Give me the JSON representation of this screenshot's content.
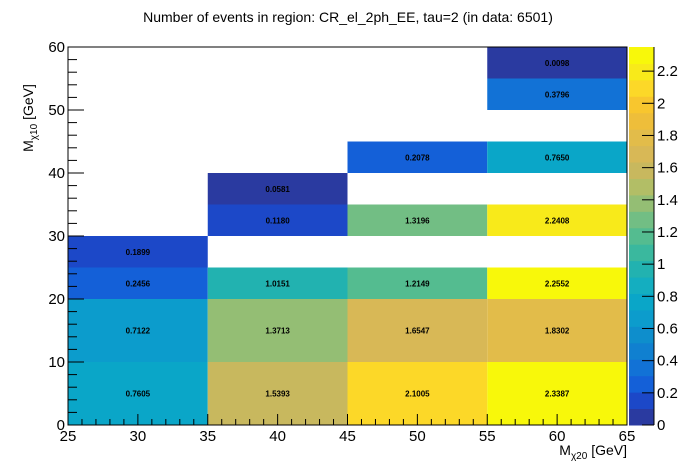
{
  "chart_data": {
    "type": "heatmap",
    "title": "Number of events in region: CR_el_2ph_EE, tau=2 (in data: 6501)",
    "xlabel": {
      "main": "M",
      "sub": "χ20",
      "unit": " [GeV]"
    },
    "ylabel": {
      "main": "M",
      "sub": "χ10",
      "unit": " [GeV]"
    },
    "xlim": [
      25,
      65
    ],
    "ylim": [
      0,
      60
    ],
    "x_ticks": [
      25,
      30,
      35,
      40,
      45,
      50,
      55,
      60,
      65
    ],
    "x_tick_labels": [
      "25",
      "30",
      "35",
      "40",
      "45",
      "50",
      "55",
      "60",
      "65"
    ],
    "y_ticks": [
      0,
      10,
      20,
      30,
      40,
      50,
      60
    ],
    "y_tick_labels": [
      "0",
      "10",
      "20",
      "30",
      "40",
      "50",
      "60"
    ],
    "zlim": [
      0,
      2.35
    ],
    "z_ticks": [
      0,
      0.2,
      0.4,
      0.6,
      0.8,
      1,
      1.2,
      1.4,
      1.6,
      1.8,
      2,
      2.2
    ],
    "z_tick_labels": [
      "0",
      "0.2",
      "0.4",
      "0.6",
      "0.8",
      "1",
      "1.2",
      "1.4",
      "1.6",
      "1.8",
      "2",
      "2.2"
    ],
    "palette": [
      "#2a3aa0",
      "#1c48c8",
      "#1460d8",
      "#1272d6",
      "#1080d0",
      "#0e8ecc",
      "#0c9ccc",
      "#0aa6c8",
      "#14aec0",
      "#22b2b0",
      "#3ab89e",
      "#54bc90",
      "#72be84",
      "#94be74",
      "#b2be66",
      "#c8b85e",
      "#d8b856",
      "#e2bc4a",
      "#eebe3a",
      "#f8c62e",
      "#fcd828",
      "#f8ea1a",
      "#f8f80a"
    ],
    "cells": [
      {
        "x0": 25,
        "x1": 35,
        "y0": 0,
        "y1": 10,
        "value": 0.7605,
        "label": "0.7605"
      },
      {
        "x0": 25,
        "x1": 35,
        "y0": 10,
        "y1": 20,
        "value": 0.7122,
        "label": "0.7122"
      },
      {
        "x0": 25,
        "x1": 35,
        "y0": 20,
        "y1": 25,
        "value": 0.2456,
        "label": "0.2456"
      },
      {
        "x0": 25,
        "x1": 35,
        "y0": 25,
        "y1": 30,
        "value": 0.1899,
        "label": "0.1899"
      },
      {
        "x0": 35,
        "x1": 45,
        "y0": 0,
        "y1": 10,
        "value": 1.5393,
        "label": "1.5393"
      },
      {
        "x0": 35,
        "x1": 45,
        "y0": 10,
        "y1": 20,
        "value": 1.3713,
        "label": "1.3713"
      },
      {
        "x0": 35,
        "x1": 45,
        "y0": 20,
        "y1": 25,
        "value": 1.0151,
        "label": "1.0151"
      },
      {
        "x0": 35,
        "x1": 45,
        "y0": 30,
        "y1": 35,
        "value": 0.118,
        "label": "0.1180"
      },
      {
        "x0": 35,
        "x1": 45,
        "y0": 35,
        "y1": 40,
        "value": 0.0581,
        "label": "0.0581"
      },
      {
        "x0": 45,
        "x1": 55,
        "y0": 0,
        "y1": 10,
        "value": 2.1005,
        "label": "2.1005"
      },
      {
        "x0": 45,
        "x1": 55,
        "y0": 10,
        "y1": 20,
        "value": 1.6547,
        "label": "1.6547"
      },
      {
        "x0": 45,
        "x1": 55,
        "y0": 20,
        "y1": 25,
        "value": 1.2149,
        "label": "1.2149"
      },
      {
        "x0": 45,
        "x1": 55,
        "y0": 30,
        "y1": 35,
        "value": 1.3196,
        "label": "1.3196"
      },
      {
        "x0": 45,
        "x1": 55,
        "y0": 40,
        "y1": 45,
        "value": 0.2078,
        "label": "0.2078"
      },
      {
        "x0": 55,
        "x1": 65,
        "y0": 0,
        "y1": 10,
        "value": 2.3387,
        "label": "2.3387"
      },
      {
        "x0": 55,
        "x1": 65,
        "y0": 10,
        "y1": 20,
        "value": 1.8302,
        "label": "1.8302"
      },
      {
        "x0": 55,
        "x1": 65,
        "y0": 20,
        "y1": 25,
        "value": 2.2552,
        "label": "2.2552"
      },
      {
        "x0": 55,
        "x1": 65,
        "y0": 30,
        "y1": 35,
        "value": 2.2408,
        "label": "2.2408"
      },
      {
        "x0": 55,
        "x1": 65,
        "y0": 40,
        "y1": 45,
        "value": 0.765,
        "label": "0.7650"
      },
      {
        "x0": 55,
        "x1": 65,
        "y0": 50,
        "y1": 55,
        "value": 0.3796,
        "label": "0.3796"
      },
      {
        "x0": 55,
        "x1": 65,
        "y0": 55,
        "y1": 60,
        "value": 0.0098,
        "label": "0.0098"
      }
    ],
    "grid": false,
    "colorbar": "right"
  }
}
